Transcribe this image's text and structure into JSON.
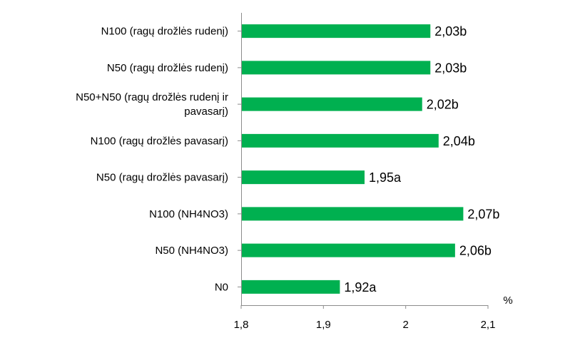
{
  "chart_data": {
    "type": "bar",
    "orientation": "horizontal",
    "title": "",
    "xlabel": "%",
    "ylabel": "",
    "xlim": [
      1.8,
      2.1
    ],
    "grid": false,
    "legend": "none",
    "bar_color": "#00b050",
    "categories": [
      [
        "N100 (ragų drožlės rudenį)"
      ],
      [
        "N50 (ragų drožlės rudenį)"
      ],
      [
        "N50+N50  (ragų drožlės rudenį ir",
        "pavasarį)"
      ],
      [
        "N100 (ragų drožlės pavasarį)"
      ],
      [
        "N50 (ragų drožlės pavasarį)"
      ],
      [
        "N100 (NH4NO3)"
      ],
      [
        "N50 (NH4NO3)"
      ],
      [
        "N0"
      ]
    ],
    "values": [
      2.03,
      2.03,
      2.02,
      2.04,
      1.95,
      2.07,
      2.06,
      1.92
    ],
    "data_labels": [
      "2,03b",
      "2,03b",
      "2,02b",
      "2,04b",
      "1,95a",
      "2,07b",
      "2,06b",
      "1,92a"
    ],
    "x_ticks": [
      1.8,
      1.9,
      2,
      2.1
    ],
    "x_tick_labels": [
      "1,8",
      "1,9",
      "2",
      "2,1"
    ]
  }
}
